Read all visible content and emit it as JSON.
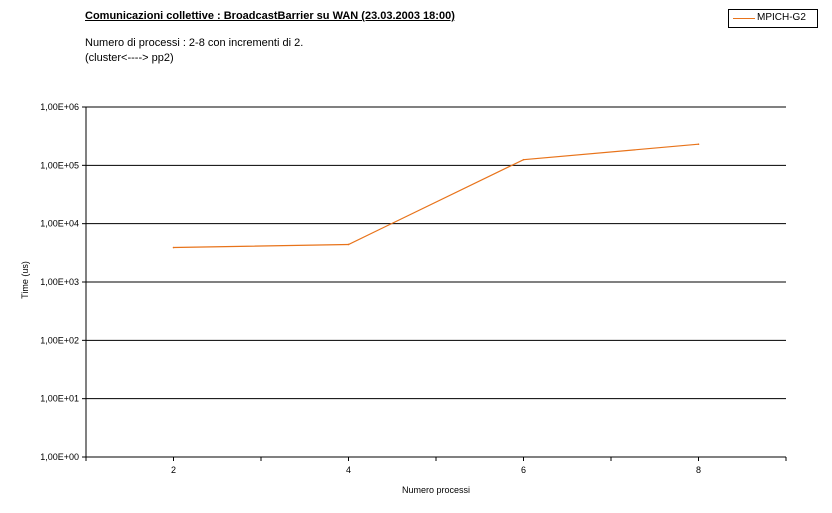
{
  "header": {
    "title": "Comunicazioni collettive : BroadcastBarrier su WAN (23.03.2003 18:00)",
    "subtitle_line1": "Numero di processi : 2-8 con incrementi di 2.",
    "subtitle_line2": "(cluster<----> pp2)"
  },
  "legend": {
    "label": "MPICH-G2"
  },
  "chart_data": {
    "type": "line",
    "title": "Comunicazioni collettive : BroadcastBarrier su WAN (23.03.2003 18:00)",
    "xlabel": "Numero processi",
    "ylabel": "Time (us)",
    "x": [
      2,
      4,
      6,
      8
    ],
    "x_tick_labels": [
      "2",
      "4",
      "6",
      "8"
    ],
    "y_scale": "log",
    "ylim": [
      1,
      1000000
    ],
    "y_tick_values": [
      1,
      10,
      100,
      1000,
      10000,
      100000,
      1000000
    ],
    "y_tick_labels": [
      "1,00E+00",
      "1,00E+01",
      "1,00E+02",
      "1,00E+03",
      "1,00E+04",
      "1,00E+05",
      "1,00E+06"
    ],
    "grid": true,
    "legend_position": "top-right",
    "series": [
      {
        "name": "MPICH-G2",
        "values": [
          3900,
          4400,
          125000,
          230000
        ],
        "color": "#e8731a"
      }
    ]
  }
}
